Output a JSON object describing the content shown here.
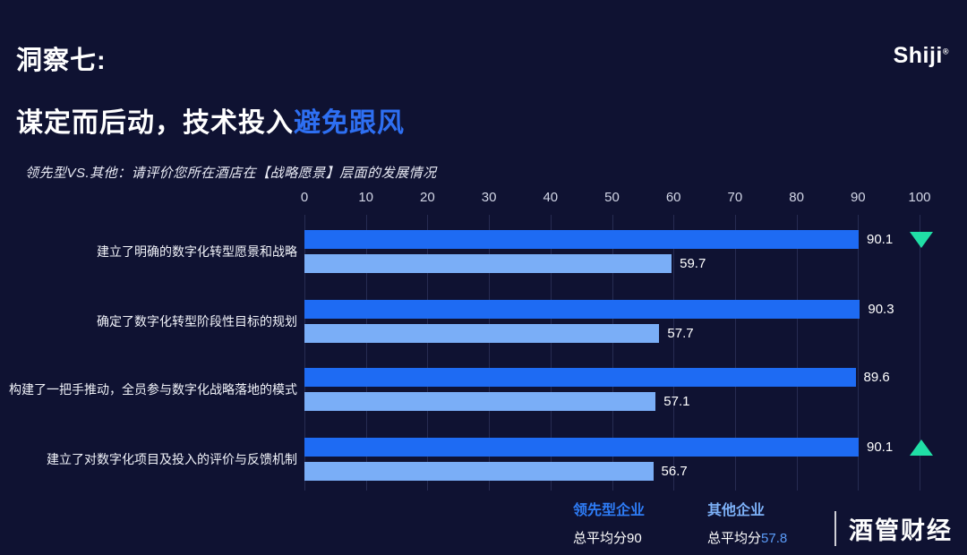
{
  "header": {
    "title": "洞察七:",
    "subtitle_plain": "谋定而后动，技术投入",
    "subtitle_highlight": "避免跟风",
    "logo": "Shiji",
    "logo_mark": "®"
  },
  "chart_intro": "领先型VS.其他：请评价您所在酒店在【战略愿景】层面的发展情况",
  "chart_data": {
    "type": "bar",
    "orientation": "horizontal",
    "title": "",
    "xlabel": "",
    "ylabel": "",
    "xlim": [
      0,
      100
    ],
    "xticks": [
      0,
      10,
      20,
      30,
      40,
      50,
      60,
      70,
      80,
      90,
      100
    ],
    "grid": true,
    "categories": [
      "建立了明确的数字化转型愿景和战略",
      "确定了数字化转型阶段性目标的规划",
      "构建了一把手推动，全员参与数字化战略落地的模式",
      "建立了对数字化项目及投入的评价与反馈机制"
    ],
    "series": [
      {
        "name": "领先型企业",
        "color": "#1e6bf3",
        "values": [
          90.1,
          90.3,
          89.6,
          90.1
        ]
      },
      {
        "name": "其他企业",
        "color": "#7aaef7",
        "values": [
          59.7,
          57.7,
          57.1,
          56.7
        ]
      }
    ],
    "annotations": [
      {
        "row": 0,
        "type": "triangle-down",
        "color": "#20dfa6"
      },
      {
        "row": 3,
        "type": "triangle-up",
        "color": "#20dfa6"
      }
    ]
  },
  "legend": [
    {
      "name": "领先型企业",
      "color": "#2e7cf6",
      "avg_label": "总平均分",
      "avg_value": "90",
      "avg_value_color": "#ffffff"
    },
    {
      "name": "其他企业",
      "color": "#7db1f8",
      "avg_label": "总平均分",
      "avg_value": "57.8",
      "avg_value_color": "#5b9cf8"
    }
  ],
  "watermark": "酒管财经"
}
